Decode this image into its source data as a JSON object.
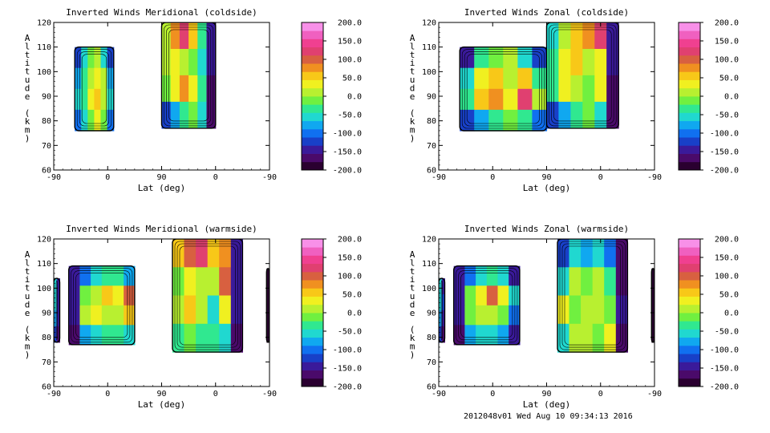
{
  "footer": "2012048v01 Wed Aug 10 09:34:13 2016",
  "colorbar": {
    "ticks": [
      "200.0",
      "150.0",
      "100.0",
      "50.0",
      "0.0",
      "-50.0",
      "-100.0",
      "-150.0",
      "-200.0"
    ],
    "values": [
      200,
      150,
      100,
      50,
      0,
      -50,
      -100,
      -150,
      -200
    ],
    "range": [
      -200,
      200
    ],
    "colors": [
      "#2a0030",
      "#4a0a6a",
      "#3a1a9a",
      "#1840c8",
      "#1070f0",
      "#10a8f0",
      "#20d8d0",
      "#30e890",
      "#70f040",
      "#b8f030",
      "#f0f020",
      "#f8c818",
      "#f09020",
      "#d86040",
      "#e04070",
      "#f04090",
      "#f060c0",
      "#f890e8"
    ]
  },
  "chart_data": [
    {
      "type": "heatmap",
      "title": "Inverted Winds Meridional (coldside)",
      "xlabel": "Lat (deg)",
      "ylabel": "Altitude (km)",
      "xticks": [
        "-90",
        "0",
        "90",
        "0",
        "-90"
      ],
      "yticks": [
        "120",
        "110",
        "100",
        "90",
        "80",
        "70",
        "60"
      ],
      "ylim": [
        60,
        120
      ],
      "regions": [
        {
          "lat_range": [
            -55,
            10
          ],
          "alt_range": [
            76,
            110
          ],
          "z": [
            [
              -120,
              -60,
              -20,
              0,
              -60,
              -120
            ],
            [
              -80,
              -30,
              20,
              40,
              0,
              -80
            ],
            [
              -60,
              -40,
              30,
              60,
              20,
              -60
            ],
            [
              -100,
              -60,
              -10,
              30,
              -20,
              -100
            ]
          ]
        },
        {
          "lat_range": [
            90,
            0
          ],
          "alt_range": [
            77,
            120
          ],
          "z": [
            [
              20,
              80,
              120,
              60,
              -40,
              -150
            ],
            [
              0,
              40,
              20,
              -20,
              -60,
              -150
            ],
            [
              -10,
              30,
              80,
              40,
              -30,
              -160
            ],
            [
              -120,
              -80,
              -40,
              -20,
              -60,
              -170
            ]
          ]
        }
      ]
    },
    {
      "type": "heatmap",
      "title": "Inverted Winds Zonal (coldside)",
      "xlabel": "Lat (deg)",
      "ylabel": "Altitude (km)",
      "xticks": [
        "-90",
        "0",
        "90",
        "0",
        "-90"
      ],
      "yticks": [
        "120",
        "110",
        "100",
        "90",
        "80",
        "70",
        "60"
      ],
      "ylim": [
        60,
        120
      ],
      "regions": [
        {
          "lat_range": [
            -55,
            90
          ],
          "alt_range": [
            76,
            110
          ],
          "z": [
            [
              -140,
              -40,
              -10,
              10,
              -60,
              -130
            ],
            [
              -60,
              40,
              60,
              20,
              60,
              -40
            ],
            [
              -40,
              60,
              80,
              30,
              120,
              20
            ],
            [
              -120,
              -80,
              -30,
              -20,
              -40,
              -100
            ]
          ]
        },
        {
          "lat_range": [
            90,
            -30
          ],
          "alt_range": [
            77,
            120
          ],
          "z": [
            [
              -60,
              20,
              60,
              80,
              120,
              -150
            ],
            [
              -40,
              30,
              60,
              20,
              40,
              -150
            ],
            [
              -40,
              40,
              20,
              -10,
              30,
              -160
            ],
            [
              -130,
              -80,
              -40,
              -20,
              -50,
              -170
            ]
          ]
        }
      ]
    },
    {
      "type": "heatmap",
      "title": "Inverted Winds Meridional (warmside)",
      "xlabel": "Lat (deg)",
      "ylabel": "Altitude (km)",
      "xticks": [
        "-90",
        "0",
        "90",
        "0",
        "-90"
      ],
      "yticks": [
        "120",
        "110",
        "100",
        "90",
        "80",
        "70",
        "60"
      ],
      "ylim": [
        60,
        120
      ],
      "regions": [
        {
          "lat_range": [
            -90,
            -80
          ],
          "alt_range": [
            78,
            104
          ],
          "z": [
            [
              -60,
              -140
            ],
            [
              -60,
              -140
            ],
            [
              -80,
              -150
            ],
            [
              -120,
              -170
            ]
          ]
        },
        {
          "lat_range": [
            -65,
            45
          ],
          "alt_range": [
            77,
            109
          ],
          "z": [
            [
              -140,
              -100,
              -60,
              -40,
              -30,
              -80
            ],
            [
              -150,
              -20,
              10,
              50,
              40,
              90
            ],
            [
              -150,
              10,
              30,
              20,
              10,
              60
            ],
            [
              -160,
              -80,
              -50,
              -40,
              -40,
              -60
            ]
          ]
        },
        {
          "lat_range": [
            72,
            -45
          ],
          "alt_range": [
            74,
            120
          ],
          "z": [
            [
              60,
              100,
              120,
              60,
              80,
              -150
            ],
            [
              -20,
              40,
              20,
              10,
              100,
              -140
            ],
            [
              20,
              60,
              20,
              -60,
              30,
              -150
            ],
            [
              -40,
              -20,
              -30,
              -40,
              -60,
              -170
            ]
          ]
        },
        {
          "lat_range": [
            -85,
            -90
          ],
          "alt_range": [
            78,
            108
          ],
          "z": [
            [
              -180
            ],
            [
              -180
            ],
            [
              -180
            ],
            [
              -180
            ]
          ]
        }
      ]
    },
    {
      "type": "heatmap",
      "title": "Inverted Winds Zonal (warmside)",
      "xlabel": "Lat (deg)",
      "ylabel": "Altitude (km)",
      "xticks": [
        "-90",
        "0",
        "90",
        "0",
        "-90"
      ],
      "yticks": [
        "120",
        "110",
        "100",
        "90",
        "80",
        "70",
        "60"
      ],
      "ylim": [
        60,
        120
      ],
      "regions": [
        {
          "lat_range": [
            -90,
            -80
          ],
          "alt_range": [
            78,
            104
          ],
          "z": [
            [
              -60,
              -140
            ],
            [
              -50,
              -130
            ],
            [
              -70,
              -150
            ],
            [
              -120,
              -170
            ]
          ]
        },
        {
          "lat_range": [
            -65,
            45
          ],
          "alt_range": [
            77,
            109
          ],
          "z": [
            [
              -150,
              -100,
              -60,
              -40,
              -60,
              -140
            ],
            [
              -150,
              -20,
              30,
              90,
              40,
              -60
            ],
            [
              -150,
              -10,
              20,
              10,
              -10,
              -100
            ],
            [
              -160,
              -80,
              -60,
              -50,
              -70,
              -140
            ]
          ]
        },
        {
          "lat_range": [
            72,
            -45
          ],
          "alt_range": [
            74,
            120
          ],
          "z": [
            [
              -120,
              -60,
              -80,
              -60,
              -100,
              -170
            ],
            [
              -60,
              20,
              -20,
              10,
              -30,
              -160
            ],
            [
              40,
              -10,
              20,
              10,
              -10,
              -150
            ],
            [
              -60,
              0,
              10,
              -20,
              40,
              -170
            ]
          ]
        },
        {
          "lat_range": [
            -85,
            -90
          ],
          "alt_range": [
            78,
            108
          ],
          "z": [
            [
              -180
            ],
            [
              -180
            ],
            [
              -180
            ],
            [
              -180
            ]
          ]
        }
      ]
    }
  ]
}
